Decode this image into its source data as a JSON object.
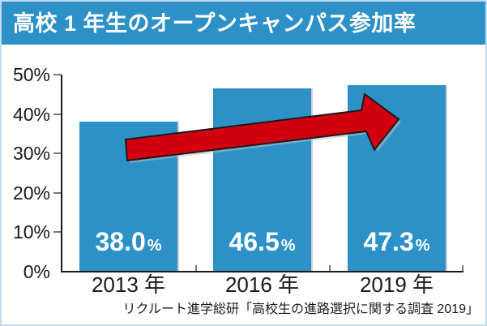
{
  "header": {
    "title": "高校 1 年生のオープンキャンパス参加率",
    "bg_color": "#2d91c8",
    "text_color": "#ffffff"
  },
  "chart_data": {
    "type": "bar",
    "title": "高校 1 年生のオープンキャンパス参加率",
    "categories": [
      "2013 年",
      "2016 年",
      "2019 年"
    ],
    "values": [
      38.0,
      46.5,
      47.3
    ],
    "display_values": [
      "38.0",
      "46.5",
      "47.3"
    ],
    "unit": "%",
    "ytick_labels": [
      "50%",
      "40%",
      "30%",
      "20%",
      "10%",
      "0%"
    ],
    "ylim": [
      0,
      50
    ],
    "grid": "off",
    "legend": "none",
    "bar_color": "#2d91c8",
    "annotation": {
      "type": "trend-arrow",
      "direction": "up-right",
      "color": "#d2000f",
      "outline": "#1a1a1a"
    }
  },
  "footer": {
    "source": "リクルート進学総研「高校生の進路選択に関する調査 2019」"
  }
}
